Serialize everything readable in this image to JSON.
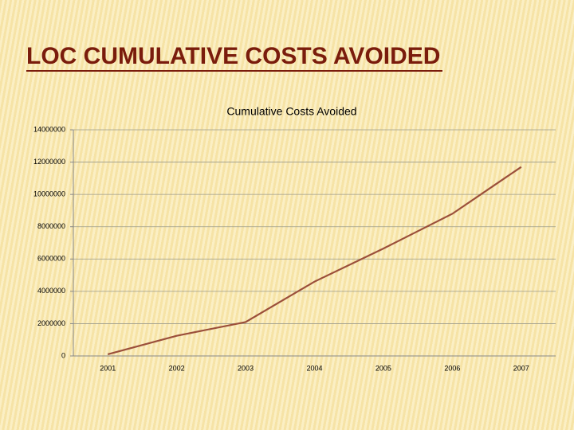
{
  "slide_title": "LOC CUMULATIVE COSTS AVOIDED",
  "chart_data": {
    "type": "line",
    "title": "Cumulative Costs Avoided",
    "categories": [
      "2001",
      "2002",
      "2003",
      "2004",
      "2005",
      "2006",
      "2007"
    ],
    "values": [
      100000,
      1250000,
      2100000,
      4600000,
      6650000,
      8800000,
      11700000
    ],
    "color": "#9b4f3a",
    "ylim": [
      0,
      14000000
    ],
    "yticks": [
      0,
      2000000,
      4000000,
      6000000,
      8000000,
      10000000,
      12000000,
      14000000
    ],
    "grid": true
  }
}
